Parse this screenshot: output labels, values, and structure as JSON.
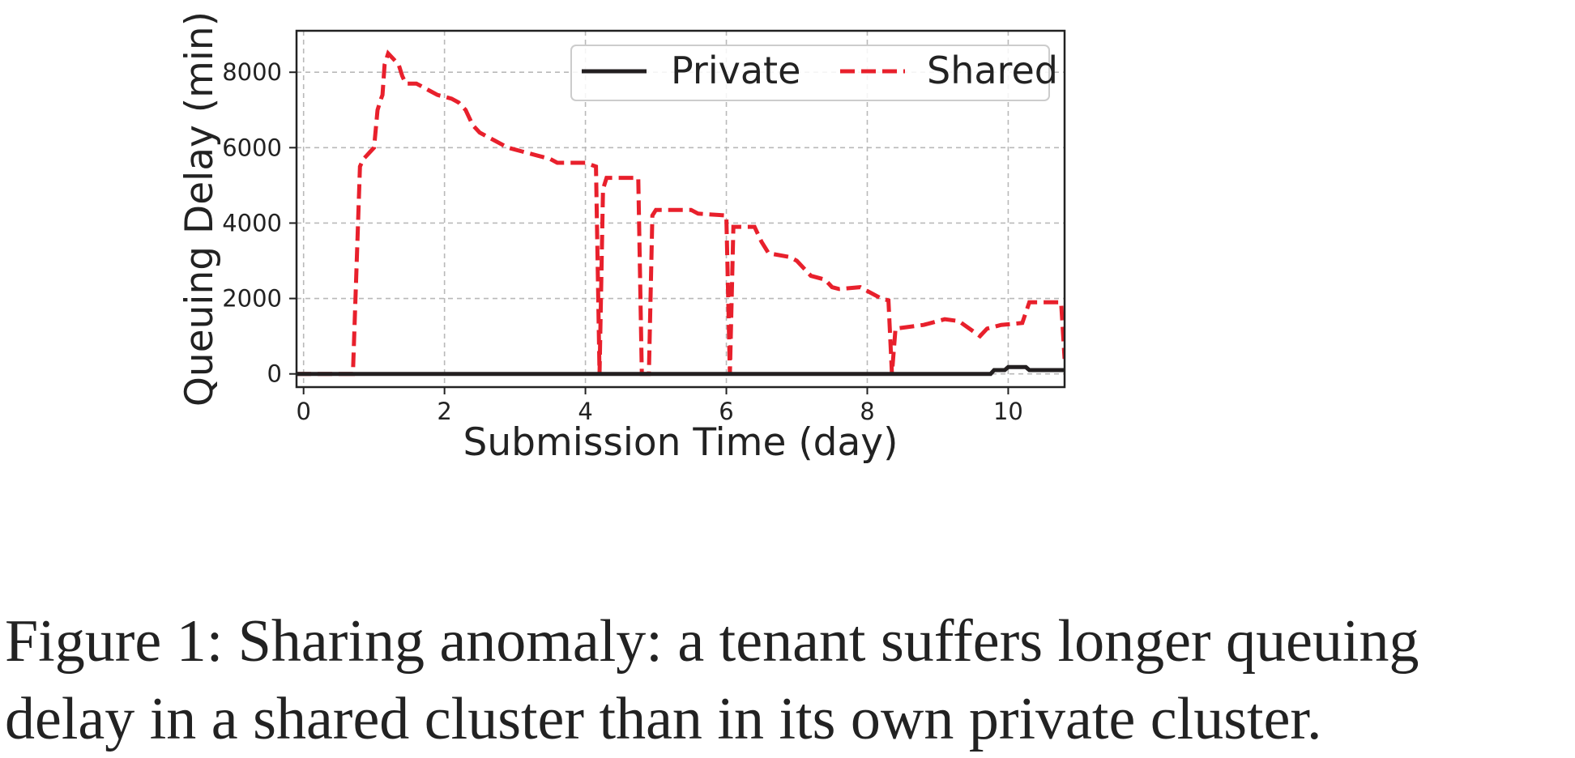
{
  "chart_data": {
    "type": "line",
    "xlabel": "Submission Time (day)",
    "ylabel": "Queuing Delay (min)",
    "xlim": [
      -0.1,
      10.8
    ],
    "ylim": [
      -350,
      9100
    ],
    "xticks": [
      0,
      2,
      4,
      6,
      8,
      10
    ],
    "yticks": [
      0,
      2000,
      4000,
      6000,
      8000
    ],
    "xtick_labels": [
      "0",
      "2",
      "4",
      "6",
      "8",
      "10"
    ],
    "ytick_labels": [
      "0",
      "2000",
      "4000",
      "6000",
      "8000"
    ],
    "grid": true,
    "legend_position": "top-right",
    "series": [
      {
        "name": "Private",
        "color": "#231f20",
        "style": "solid",
        "x": [
          -0.1,
          9.75,
          9.8,
          9.95,
          10.0,
          10.25,
          10.3,
          10.8
        ],
        "y": [
          0,
          0,
          100,
          100,
          180,
          180,
          100,
          100
        ]
      },
      {
        "name": "Shared",
        "color": "#e8202c",
        "style": "dashed",
        "x": [
          -0.1,
          0.7,
          0.8,
          0.85,
          0.9,
          0.95,
          1.0,
          1.05,
          1.1,
          1.12,
          1.15,
          1.2,
          1.3,
          1.35,
          1.4,
          1.45,
          1.6,
          1.7,
          1.8,
          1.9,
          2.0,
          2.1,
          2.2,
          2.3,
          2.4,
          2.5,
          2.6,
          2.7,
          2.8,
          2.9,
          3.1,
          3.3,
          3.5,
          3.6,
          4.0,
          4.15,
          4.2,
          4.25,
          4.3,
          4.4,
          4.75,
          4.8,
          4.9,
          4.95,
          5.0,
          5.5,
          5.6,
          6.0,
          6.05,
          6.1,
          6.4,
          6.5,
          6.6,
          6.9,
          7.0,
          7.1,
          7.2,
          7.4,
          7.5,
          7.6,
          7.9,
          8.0,
          8.2,
          8.3,
          8.35,
          8.4,
          8.6,
          8.8,
          9.1,
          9.3,
          9.6,
          9.7,
          9.9,
          10.2,
          10.3,
          10.75,
          10.8
        ],
        "y": [
          0,
          0,
          5500,
          5700,
          5800,
          5900,
          6000,
          7000,
          7300,
          7400,
          8200,
          8500,
          8300,
          8200,
          7900,
          7700,
          7700,
          7600,
          7500,
          7400,
          7350,
          7300,
          7200,
          7000,
          6600,
          6400,
          6300,
          6200,
          6100,
          6000,
          5900,
          5800,
          5700,
          5600,
          5600,
          5500,
          0,
          4900,
          5200,
          5200,
          5200,
          0,
          0,
          4200,
          4350,
          4350,
          4250,
          4200,
          0,
          3900,
          3900,
          3500,
          3200,
          3100,
          3000,
          2800,
          2600,
          2500,
          2300,
          2250,
          2300,
          2200,
          2000,
          1950,
          0,
          1200,
          1250,
          1300,
          1450,
          1400,
          1000,
          1200,
          1300,
          1350,
          1900,
          1900,
          400
        ]
      }
    ]
  },
  "caption": {
    "line1": "Figure 1: Sharing anomaly: a tenant suffers longer queuing",
    "line2": "delay in a shared cluster than in its own private cluster."
  }
}
